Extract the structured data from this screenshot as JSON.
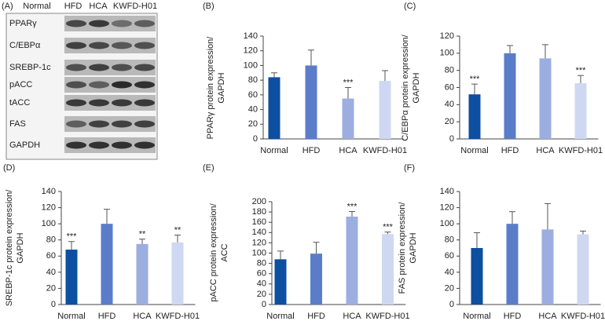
{
  "blot": {
    "panel": "(A)",
    "columns": [
      "Normal",
      "HFD",
      "HCA",
      "KWFD-H01"
    ],
    "rows": [
      "PPARγ",
      "C/EBPα",
      "SREBP-1c",
      "pACC",
      "tACC",
      "FAS",
      "GAPDH"
    ]
  },
  "chart_data": [
    {
      "type": "bar",
      "panel": "(B)",
      "ylabel": [
        "PPARγ protein expression/",
        "GAPDH"
      ],
      "categories": [
        "Normal",
        "HFD",
        "HCA",
        "KWFD-H01"
      ],
      "values": [
        84,
        100,
        55,
        79
      ],
      "errors": [
        6,
        21,
        15,
        14
      ],
      "annotations": [
        null,
        null,
        "***",
        null
      ],
      "colors": [
        "#0d4fa0",
        "#5b7dc9",
        "#9caee0",
        "#cfd8f2"
      ],
      "ylim": [
        0,
        140
      ],
      "yticks": [
        0,
        20,
        40,
        60,
        80,
        100,
        120,
        140
      ]
    },
    {
      "type": "bar",
      "panel": "(C)",
      "ylabel": [
        "C/EBPα protein expression/",
        "GAPDH"
      ],
      "categories": [
        "Normal",
        "HFD",
        "HCA",
        "KWFD-H01"
      ],
      "values": [
        52,
        100,
        94,
        65
      ],
      "errors": [
        12,
        9,
        16,
        9
      ],
      "annotations": [
        "***",
        null,
        null,
        "***"
      ],
      "colors": [
        "#0d4fa0",
        "#5b7dc9",
        "#9caee0",
        "#cfd8f2"
      ],
      "ylim": [
        0,
        120
      ],
      "yticks": [
        0,
        20,
        40,
        60,
        80,
        100,
        120
      ]
    },
    {
      "type": "bar",
      "panel": "(D)",
      "ylabel": [
        "SREBP-1c protein expression/",
        "GAPDH"
      ],
      "categories": [
        "Normal",
        "HFD",
        "HCA",
        "KWFD-H01"
      ],
      "values": [
        68,
        100,
        75,
        77
      ],
      "errors": [
        10,
        18,
        6,
        9
      ],
      "annotations": [
        "***",
        null,
        "**",
        "**"
      ],
      "colors": [
        "#0d4fa0",
        "#5b7dc9",
        "#9caee0",
        "#cfd8f2"
      ],
      "ylim": [
        0,
        140
      ],
      "yticks": [
        0,
        20,
        40,
        60,
        80,
        100,
        120,
        140
      ]
    },
    {
      "type": "bar",
      "panel": "(E)",
      "ylabel": [
        "pACC protein expression/",
        "ACC"
      ],
      "categories": [
        "Normal",
        "HFD",
        "HCA",
        "KWFD-H01"
      ],
      "values": [
        88,
        99,
        171,
        137
      ],
      "errors": [
        16,
        22,
        10,
        4
      ],
      "annotations": [
        null,
        null,
        "***",
        "***"
      ],
      "colors": [
        "#0d4fa0",
        "#5b7dc9",
        "#9caee0",
        "#cfd8f2"
      ],
      "ylim": [
        0,
        200
      ],
      "yticks": [
        0,
        20,
        40,
        60,
        80,
        100,
        120,
        140,
        160,
        180,
        200
      ]
    },
    {
      "type": "bar",
      "panel": "(F)",
      "ylabel": [
        "FAS protein expression/",
        "GAPDH"
      ],
      "categories": [
        "Normal",
        "HFD",
        "HCA",
        "KWFD-H01"
      ],
      "values": [
        70,
        100,
        93,
        87
      ],
      "errors": [
        19,
        15,
        32,
        4
      ],
      "annotations": [
        null,
        null,
        null,
        null
      ],
      "colors": [
        "#0d4fa0",
        "#5b7dc9",
        "#9caee0",
        "#cfd8f2"
      ],
      "ylim": [
        0,
        140
      ],
      "yticks": [
        0,
        20,
        40,
        60,
        80,
        100,
        120,
        140
      ]
    }
  ]
}
